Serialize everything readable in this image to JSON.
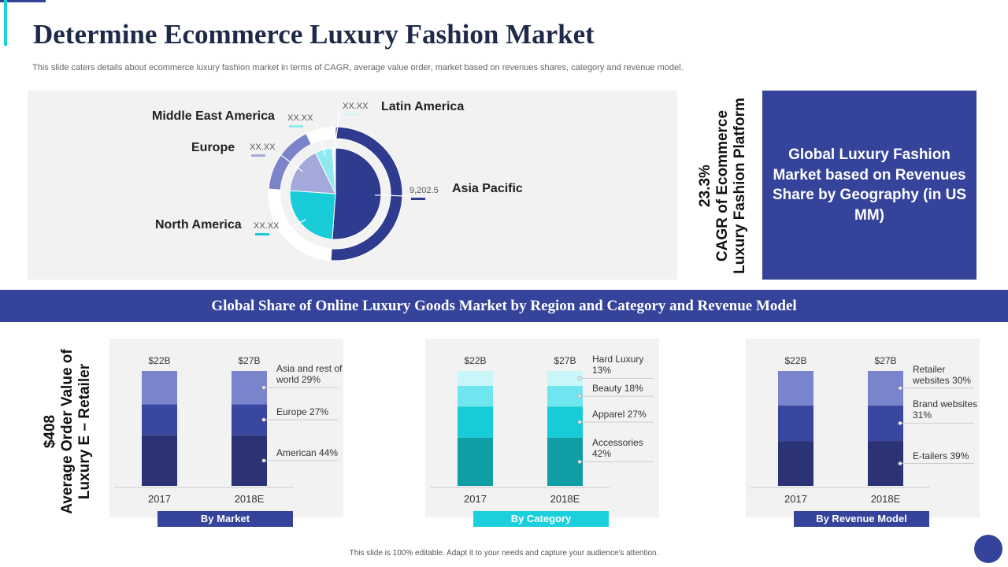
{
  "header": {
    "title": "Determine Ecommerce Luxury Fashion Market",
    "subtitle": "This slide caters details about ecommerce luxury fashion market in terms of CAGR,  average value order, market based on revenues shares, category and revenue model."
  },
  "cagr": {
    "value_text": "23.3%",
    "caption": "CAGR of Ecommerce Luxury Fashion Platform"
  },
  "geography_box": "Global Luxury Fashion Market based on Revenues Share by Geography (in US MM)",
  "banner": "Global Share of Online Luxury Goods Market by Region and Category and Revenue Model",
  "aov": {
    "value_text": "$408",
    "caption": "Average Order Value of Luxury E – Retailer"
  },
  "chart_data": [
    {
      "type": "donut",
      "categories": [
        "Asia Pacific",
        "North America",
        "Europe",
        "Middle East America",
        "Latin America"
      ],
      "values": [
        9202.5,
        4500,
        3000,
        1100,
        200
      ],
      "value_labels": [
        "9,202.5",
        "XX.XX",
        "XX.XX",
        "XX.XX",
        "XX.XX"
      ],
      "colors": [
        "#2f3b8f",
        "#18ccd8",
        "#a4a9db",
        "#8ee9f1",
        "#f3fbfc"
      ],
      "ring_colors": [
        "#2f3b8f",
        "#ffffff",
        "#7b83c9",
        "#ffffff",
        "#ffffff"
      ]
    },
    {
      "type": "stacked-bar",
      "title": "By Market",
      "accent": "#35439a",
      "categories": [
        "2017",
        "2018E"
      ],
      "ylim": [
        0,
        100
      ],
      "totals": {
        "values": [
          22,
          27
        ],
        "value_labels": [
          "$22B",
          "$27B"
        ]
      },
      "series": [
        {
          "name": "American 44%",
          "color": "#2b3375",
          "values": [
            44,
            44
          ]
        },
        {
          "name": "Europe 27%",
          "color": "#3a47a0",
          "values": [
            27,
            27
          ]
        },
        {
          "name": "Asia and rest of world 29%",
          "color": "#7a84cc",
          "values": [
            29,
            29
          ]
        }
      ]
    },
    {
      "type": "stacked-bar",
      "title": "By Category",
      "accent": "#1ccfdc",
      "categories": [
        "2017",
        "2018E"
      ],
      "ylim": [
        0,
        100
      ],
      "totals": {
        "values": [
          22,
          27
        ],
        "value_labels": [
          "$22B",
          "$27B"
        ]
      },
      "series": [
        {
          "name": "Accessories 42%",
          "color": "#0e9ea4",
          "values": [
            42,
            42
          ]
        },
        {
          "name": "Apparel 27%",
          "color": "#16ccd6",
          "values": [
            27,
            27
          ]
        },
        {
          "name": "Beauty 18%",
          "color": "#6fe6ef",
          "values": [
            18,
            18
          ]
        },
        {
          "name": "Hard Luxury 13%",
          "color": "#c8f6f9",
          "values": [
            13,
            13
          ]
        }
      ]
    },
    {
      "type": "stacked-bar",
      "title": "By Revenue Model",
      "accent": "#35439a",
      "categories": [
        "2017",
        "2018E"
      ],
      "ylim": [
        0,
        100
      ],
      "totals": {
        "values": [
          22,
          27
        ],
        "value_labels": [
          "$22B",
          "$27B"
        ]
      },
      "series": [
        {
          "name": "E-tailers 39%",
          "color": "#2b3375",
          "values": [
            39,
            39
          ]
        },
        {
          "name": "Brand websites 31%",
          "color": "#3a47a0",
          "values": [
            31,
            31
          ]
        },
        {
          "name": "Retailer websites 30%",
          "color": "#7a84cc",
          "values": [
            30,
            30
          ]
        }
      ]
    }
  ],
  "footer": "This slide is 100% editable.  Adapt it to your needs and capture your audience's attention."
}
